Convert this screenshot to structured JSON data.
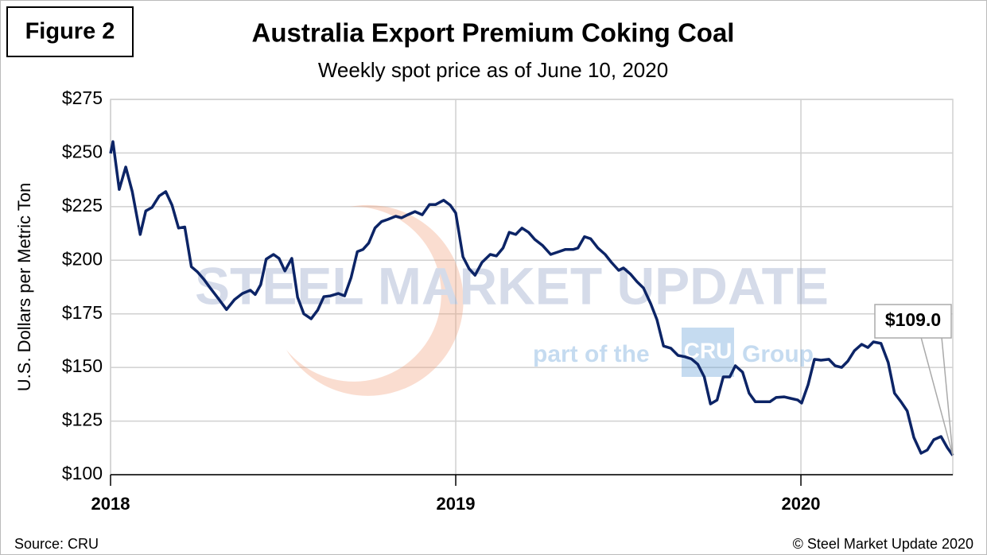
{
  "chart_data": {
    "type": "line",
    "figure_label": "Figure 2",
    "title": "Australia Export Premium Coking Coal",
    "subtitle": "Weekly spot price as of June 10, 2020",
    "y_label": "U.S. Dollars per Metric Ton",
    "source": "Source: CRU",
    "copyright": "© Steel Market Update 2020",
    "watermark": {
      "brand": "STEEL MARKET UPDATE",
      "tagline_left": "part of the",
      "tagline_logo": "CRU",
      "tagline_right": "Group"
    },
    "annotation": {
      "label": "$109.0",
      "value": 109
    },
    "xlim": [
      2018,
      2020.44
    ],
    "xticks": [
      2018,
      2019,
      2020
    ],
    "ylim": [
      100,
      275
    ],
    "yticks": [
      {
        "value": 100,
        "label": "$100"
      },
      {
        "value": 125,
        "label": "$125"
      },
      {
        "value": 150,
        "label": "$150"
      },
      {
        "value": 175,
        "label": "$175"
      },
      {
        "value": 200,
        "label": "$200"
      },
      {
        "value": 225,
        "label": "$225"
      },
      {
        "value": 250,
        "label": "$250"
      },
      {
        "value": 275,
        "label": "$275"
      }
    ],
    "grid": true,
    "color": "#0c2466",
    "x": [
      2018.0,
      2018.007,
      2018.025,
      2018.044,
      2018.063,
      2018.086,
      2018.102,
      2018.12,
      2018.141,
      2018.16,
      2018.178,
      2018.197,
      2018.215,
      2018.234,
      2018.252,
      2018.271,
      2018.289,
      2018.313,
      2018.336,
      2018.359,
      2018.382,
      2018.405,
      2018.419,
      2018.435,
      2018.451,
      2018.472,
      2018.488,
      2018.505,
      2018.525,
      2018.542,
      2018.56,
      2018.581,
      2018.6,
      2018.618,
      2018.637,
      2018.66,
      2018.678,
      2018.697,
      2018.715,
      2018.731,
      2018.748,
      2018.766,
      2018.785,
      2018.803,
      2018.826,
      2018.843,
      2018.861,
      2018.882,
      2018.903,
      2018.924,
      2018.942,
      2018.965,
      2018.984,
      2019.0,
      2019.021,
      2019.039,
      2019.056,
      2019.076,
      2019.1,
      2019.118,
      2019.137,
      2019.155,
      2019.174,
      2019.192,
      2019.211,
      2019.229,
      2019.252,
      2019.275,
      2019.299,
      2019.317,
      2019.34,
      2019.354,
      2019.373,
      2019.391,
      2019.412,
      2019.433,
      2019.451,
      2019.472,
      2019.486,
      2019.507,
      2019.525,
      2019.544,
      2019.565,
      2019.583,
      2019.602,
      2019.623,
      2019.644,
      2019.664,
      2019.683,
      2019.701,
      2019.72,
      2019.738,
      2019.757,
      2019.775,
      2019.794,
      2019.81,
      2019.831,
      2019.85,
      2019.868,
      2019.891,
      2019.91,
      2019.928,
      2019.951,
      2019.97,
      2019.991,
      2020.002,
      2020.021,
      2020.039,
      2020.058,
      2020.081,
      2020.099,
      2020.118,
      2020.136,
      2020.155,
      2020.176,
      2020.194,
      2020.21,
      2020.232,
      2020.253,
      2020.271,
      2020.29,
      2020.308,
      2020.327,
      2020.348,
      2020.366,
      2020.385,
      2020.406,
      2020.424,
      2020.44
    ],
    "values": [
      249.8,
      255.3,
      233,
      243.5,
      232,
      212,
      223,
      224.6,
      230,
      232,
      225.7,
      215,
      215.5,
      197,
      194.5,
      191,
      187,
      182,
      177,
      181.6,
      184.5,
      186,
      184,
      188.6,
      200.5,
      202.7,
      200.9,
      195,
      200.9,
      182.7,
      175,
      172.7,
      176.7,
      183,
      183.4,
      184.5,
      183.4,
      192,
      204,
      205,
      208,
      215,
      218,
      219,
      220.5,
      219.8,
      221.2,
      222.7,
      221.2,
      226,
      226,
      228,
      225.7,
      222,
      201.6,
      196,
      193,
      199,
      202.7,
      202,
      205.7,
      213,
      212,
      215,
      213,
      209.7,
      206.8,
      202.7,
      204,
      205,
      205,
      205.7,
      211,
      210,
      205.7,
      202.7,
      199,
      195.3,
      196.4,
      193.4,
      190,
      187,
      179.7,
      172.3,
      160,
      159,
      155.6,
      155,
      154,
      151.5,
      145.6,
      133,
      134.8,
      145.6,
      145.6,
      150.8,
      147.8,
      138,
      134,
      134,
      134,
      136,
      136.3,
      135.6,
      134.8,
      133.4,
      142,
      153.8,
      153.4,
      153.8,
      150.8,
      150,
      153,
      157.8,
      160.8,
      159.3,
      161.9,
      161.2,
      152.3,
      138,
      134,
      129.7,
      117.4,
      110,
      111.5,
      116.3,
      117.8,
      112.6,
      109
    ]
  }
}
